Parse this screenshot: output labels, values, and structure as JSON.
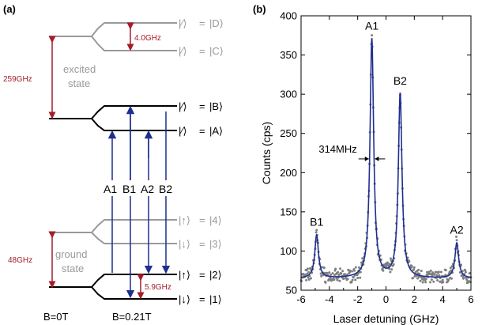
{
  "panel_a": {
    "label": "(a)",
    "splittings": {
      "excited": "259GHz",
      "ground": "48GHz",
      "excited_zeeman": "4.0GHz",
      "ground_zeeman": "5.9GHz"
    },
    "group_labels": {
      "excited_line1": "excited",
      "excited_line2": "state",
      "ground_line1": "ground",
      "ground_line2": "state"
    },
    "state_labels": {
      "D": {
        "pseudo": "|⁄⟩",
        "eq": "=",
        "ket": "|D⟩"
      },
      "C": {
        "pseudo": "|⁄⟩",
        "eq": "=",
        "ket": "|C⟩"
      },
      "B": {
        "pseudo": "|⁄⟩",
        "eq": "=",
        "ket": "|B⟩"
      },
      "A": {
        "pseudo": "|⁄⟩",
        "eq": "=",
        "ket": "|A⟩"
      },
      "s4": {
        "pseudo": "|↑⟩",
        "eq": "=",
        "ket": "|4⟩"
      },
      "s3": {
        "pseudo": "|↓⟩",
        "eq": "=",
        "ket": "|3⟩"
      },
      "s2": {
        "pseudo": "|↑⟩",
        "eq": "=",
        "ket": "|2⟩"
      },
      "s1": {
        "pseudo": "|↓⟩",
        "eq": "=",
        "ket": "|1⟩"
      }
    },
    "transitions": [
      "A1",
      "B1",
      "A2",
      "B2"
    ],
    "field_labels": [
      "B=0T",
      "B=0.21T"
    ],
    "colors": {
      "black": "#000000",
      "gray": "#9a9a9a",
      "splitting": "#a51c2a",
      "transition": "#1f2f8f"
    }
  },
  "panel_b": {
    "label": "(b)"
  },
  "chart_data": {
    "type": "scatter",
    "xlabel": "Laser detuning (GHz)",
    "ylabel": "Counts (cps)",
    "xlim": [
      -6,
      6
    ],
    "ylim": [
      50,
      400
    ],
    "xticks": [
      -6,
      -4,
      -2,
      0,
      2,
      4,
      6
    ],
    "yticks": [
      50,
      100,
      150,
      200,
      250,
      300,
      350,
      400
    ],
    "grid": false,
    "peaks": [
      {
        "label": "B1",
        "x": -4.9,
        "y": 120
      },
      {
        "label": "A1",
        "x": -1.0,
        "y": 370
      },
      {
        "label": "B2",
        "x": 1.0,
        "y": 300
      },
      {
        "label": "A2",
        "x": 5.0,
        "y": 110
      }
    ],
    "linewidth_annotation": {
      "text": "314MHz",
      "x": -1.0,
      "width_ghz": 0.314
    },
    "baseline": 65,
    "series": [
      {
        "kind": "data-points",
        "color": "#7f7f7f",
        "marker": "dot",
        "noise_cps": 7
      },
      {
        "kind": "lorentzian-fit",
        "color": "#1f2f8f"
      }
    ]
  }
}
